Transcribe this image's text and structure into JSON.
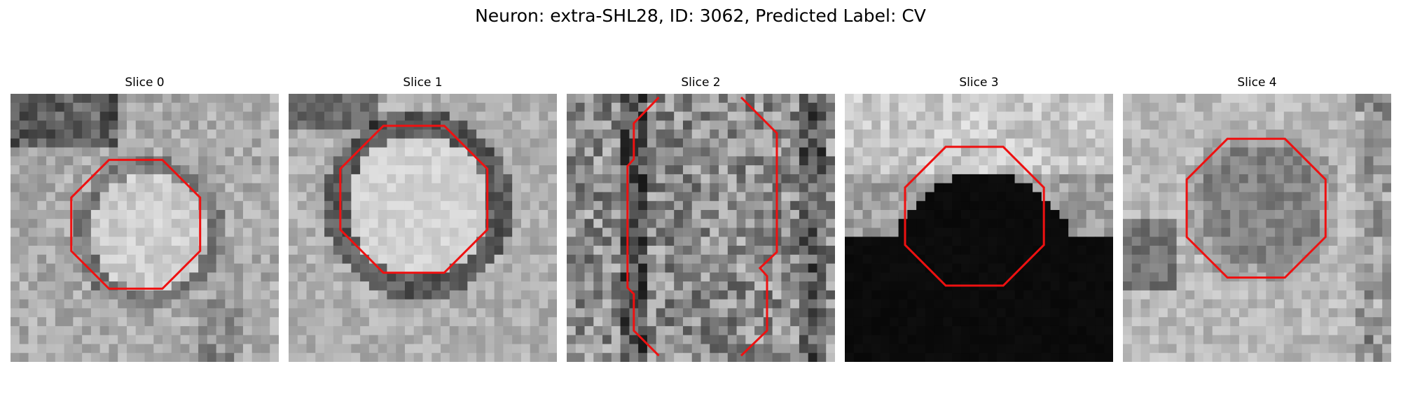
{
  "figure": {
    "title": "Neuron: extra-SHL28, ID: 3062, Predicted Label: CV"
  },
  "slices": [
    {
      "label": "Slice 0"
    },
    {
      "label": "Slice 1"
    },
    {
      "label": "Slice 2"
    },
    {
      "label": "Slice 3"
    },
    {
      "label": "Slice 4"
    }
  ],
  "colors": {
    "contour": "#ee1111",
    "background": "#ffffff"
  }
}
